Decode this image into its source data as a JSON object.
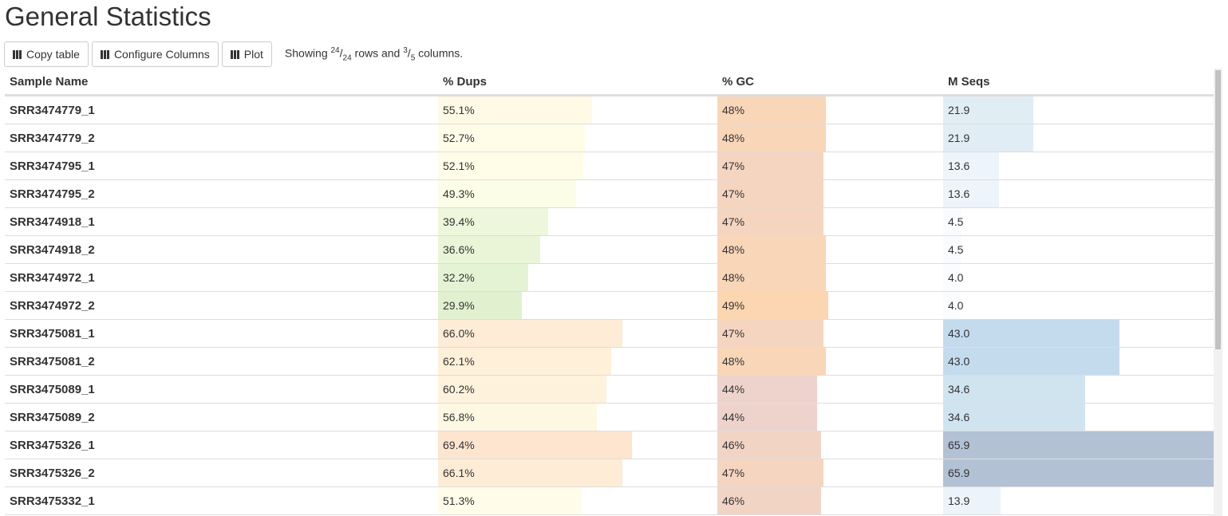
{
  "header": {
    "title": "General Statistics"
  },
  "toolbar": {
    "buttons": [
      "Copy table",
      "Configure Columns",
      "Plot"
    ],
    "status": {
      "prefix": "Showing",
      "rows_shown": "24",
      "rows_total": "24",
      "middle": "rows and",
      "cols_shown": "3",
      "cols_total": "5",
      "suffix": "columns."
    }
  },
  "table": {
    "columns": [
      {
        "header": "Sample Name",
        "values": [
          "SRR3474779_1",
          "SRR3474779_2",
          "SRR3474795_1",
          "SRR3474795_2",
          "SRR3474918_1",
          "SRR3474918_2",
          "SRR3474972_1",
          "SRR3474972_2",
          "SRR3475081_1",
          "SRR3475081_2",
          "SRR3475089_1",
          "SRR3475089_2",
          "SRR3475326_1",
          "SRR3475326_2",
          "SRR3475332_1"
        ]
      },
      {
        "header": "% Dups",
        "range": [
          0,
          100
        ],
        "values": [
          55.1,
          52.7,
          52.1,
          49.3,
          39.4,
          36.6,
          32.2,
          29.9,
          66.0,
          62.1,
          60.2,
          56.8,
          69.4,
          66.1,
          51.3
        ],
        "value_labels": [
          "55.1%",
          "52.7%",
          "52.1%",
          "49.3%",
          "39.4%",
          "36.6%",
          "32.2%",
          "29.9%",
          "66.0%",
          "62.1%",
          "60.2%",
          "56.8%",
          "69.4%",
          "66.1%",
          "51.3%"
        ],
        "colors": [
          "#fffae5",
          "#fffce8",
          "#fffce8",
          "#fcfde6",
          "#eef7dc",
          "#eaf5d8",
          "#e5f3d5",
          "#e1f1cf",
          "#feecd6",
          "#fef0d9",
          "#fef2dc",
          "#fef8e2",
          "#fde5cf",
          "#feecd6",
          "#fffde9"
        ]
      },
      {
        "header": "% GC",
        "range": [
          0,
          100
        ],
        "values": [
          48,
          48,
          47,
          47,
          47,
          48,
          48,
          49,
          47,
          48,
          44,
          44,
          46,
          47,
          46
        ],
        "value_labels": [
          "48%",
          "48%",
          "47%",
          "47%",
          "47%",
          "48%",
          "48%",
          "49%",
          "47%",
          "48%",
          "44%",
          "44%",
          "46%",
          "47%",
          "46%"
        ],
        "colors": [
          "#f9d6b8",
          "#f9d6b8",
          "#f5d5c0",
          "#f5d5c0",
          "#f5d5c0",
          "#f9d6b8",
          "#f9d6b8",
          "#fcd6b0",
          "#f5d5c0",
          "#f9d6b8",
          "#eed3cc",
          "#eed3cc",
          "#f2d4c5",
          "#f5d5c0",
          "#f2d4c5"
        ]
      },
      {
        "header": "M Seqs",
        "range": [
          0,
          65.9
        ],
        "values": [
          21.9,
          21.9,
          13.6,
          13.6,
          4.5,
          4.5,
          4.0,
          4.0,
          43.0,
          43.0,
          34.6,
          34.6,
          65.9,
          65.9,
          13.9
        ],
        "value_labels": [
          "21.9",
          "21.9",
          "13.6",
          "13.6",
          "4.5",
          "4.5",
          "4.0",
          "4.0",
          "43.0",
          "43.0",
          "34.6",
          "34.6",
          "65.9",
          "65.9",
          "13.9"
        ],
        "colors": [
          "#e1edf5",
          "#e1edf5",
          "#eef4fb",
          "#eef4fb",
          "#f9fbfe",
          "#f9fbfe",
          "#fbfcfe",
          "#fbfcfe",
          "#c4dbee",
          "#c4dbee",
          "#d0e4f0",
          "#d0e4f0",
          "#b3c1d4",
          "#b3c1d4",
          "#edf3fb"
        ]
      }
    ]
  }
}
